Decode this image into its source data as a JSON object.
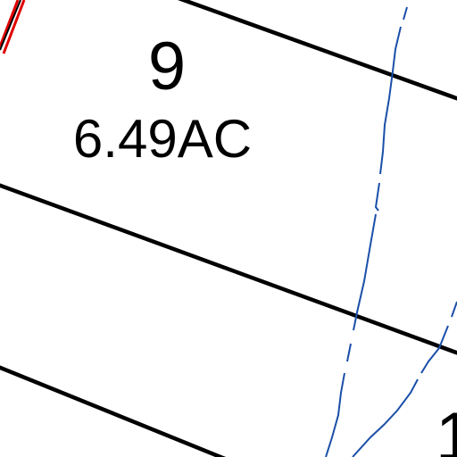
{
  "lots": [
    {
      "number": "9",
      "area": "6.49AC"
    },
    {
      "number": "1"
    }
  ]
}
